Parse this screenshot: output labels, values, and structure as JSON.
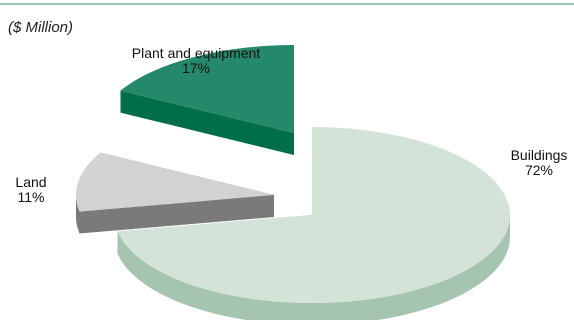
{
  "chart_data": {
    "type": "pie",
    "unit_label": "($ Million)",
    "slices": [
      {
        "label": "Buildings",
        "percent": "72%",
        "value": 72,
        "color": "#d3e3d8",
        "side_color": "#a5c5b0"
      },
      {
        "label": "Land",
        "percent": "11%",
        "value": 11,
        "color": "#d2d2d2",
        "side_color": "#7a7a7a"
      },
      {
        "label": "Plant and equipment",
        "percent": "17%",
        "value": 17,
        "color": "#24896a",
        "side_color": "#006e48"
      }
    ],
    "exploded": true,
    "three_d": true
  }
}
